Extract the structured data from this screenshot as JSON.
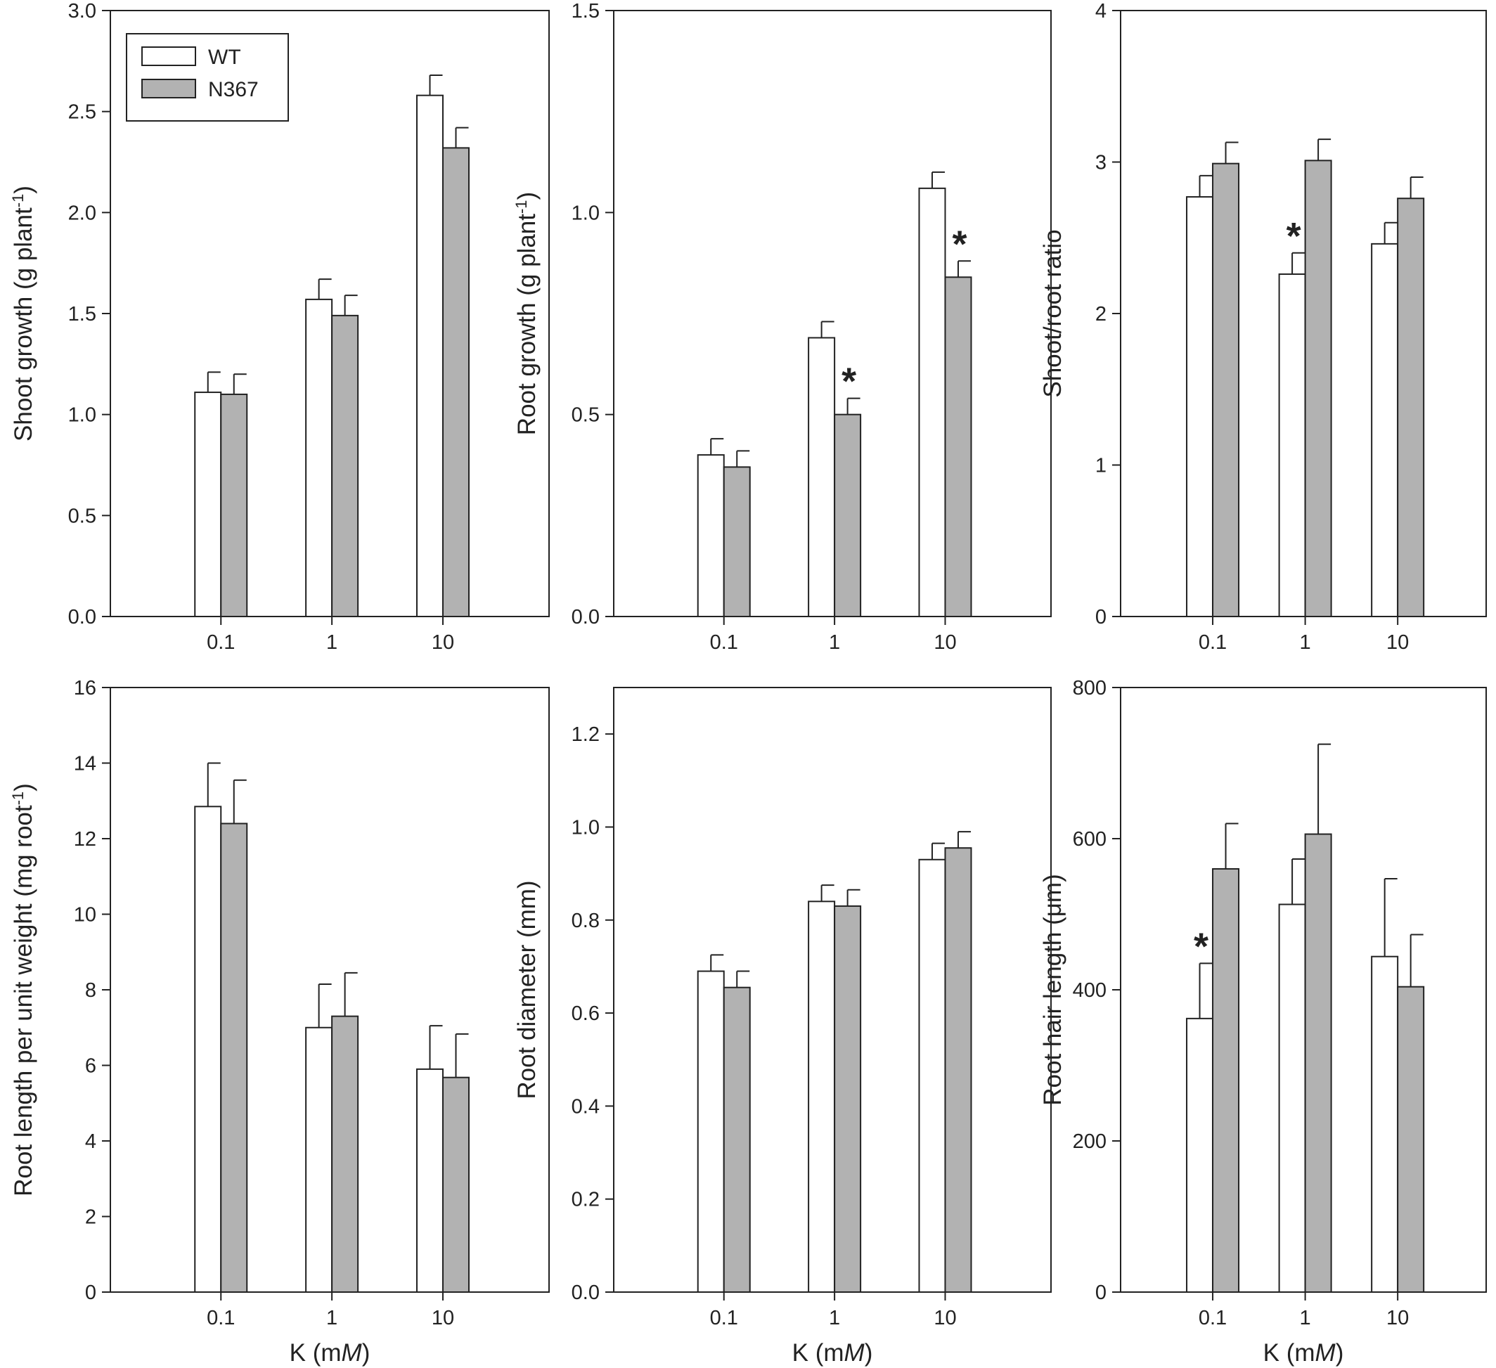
{
  "colors": {
    "wt": "#ffffff",
    "n367": "#b2b2b2",
    "axis": "#222222",
    "bar_edge": "#222222"
  },
  "legend": [
    {
      "label": "WT",
      "color": "#ffffff"
    },
    {
      "label": "N367",
      "color": "#b2b2b2"
    }
  ],
  "chart_data": [
    {
      "type": "bar",
      "categories": [
        "0.1",
        "1",
        "10"
      ],
      "ylabel": "Shoot growth (g plant-1)",
      "ylabel_main": "Shoot growth (g plant",
      "ylabel_sup": "-1",
      "ylabel_end": ")",
      "xlabel": "",
      "ylim": [
        0,
        3.0
      ],
      "yticks": [
        "0.0",
        "0.5",
        "1.0",
        "1.5",
        "2.0",
        "2.5",
        "3.0"
      ],
      "legend_position": "top-left",
      "series": [
        {
          "name": "WT",
          "values": [
            1.11,
            1.57,
            2.58
          ],
          "errors": [
            0.1,
            0.1,
            0.1
          ]
        },
        {
          "name": "N367",
          "values": [
            1.1,
            1.49,
            2.32
          ],
          "errors": [
            0.1,
            0.1,
            0.1
          ]
        }
      ],
      "annotations": []
    },
    {
      "type": "bar",
      "categories": [
        "0.1",
        "1",
        "10"
      ],
      "ylabel": "Root growth (g plant-1)",
      "ylabel_main": "Root growth (g plant",
      "ylabel_sup": "-1",
      "ylabel_end": ")",
      "xlabel": "",
      "ylim": [
        0,
        1.5
      ],
      "yticks": [
        "0.0",
        "0.5",
        "1.0",
        "1.5"
      ],
      "series": [
        {
          "name": "WT",
          "values": [
            0.4,
            0.69,
            1.06
          ],
          "errors": [
            0.04,
            0.04,
            0.04
          ]
        },
        {
          "name": "N367",
          "values": [
            0.37,
            0.5,
            0.84
          ],
          "errors": [
            0.04,
            0.04,
            0.04
          ]
        }
      ],
      "annotations": [
        {
          "text": "*",
          "category": 1,
          "series": 1
        },
        {
          "text": "*",
          "category": 2,
          "series": 1
        }
      ]
    },
    {
      "type": "bar",
      "categories": [
        "0.1",
        "1",
        "10"
      ],
      "ylabel": "Shoot/root ratio",
      "ylabel_main": "Shoot/root ratio",
      "ylabel_sup": "",
      "ylabel_end": "",
      "xlabel": "",
      "ylim": [
        0,
        4
      ],
      "yticks": [
        "0",
        "1",
        "2",
        "3",
        "4"
      ],
      "series": [
        {
          "name": "WT",
          "values": [
            2.77,
            2.26,
            2.46
          ],
          "errors": [
            0.14,
            0.14,
            0.14
          ]
        },
        {
          "name": "N367",
          "values": [
            2.99,
            3.01,
            2.76
          ],
          "errors": [
            0.14,
            0.14,
            0.14
          ]
        }
      ],
      "annotations": [
        {
          "text": "*",
          "category": 1,
          "series": 0
        }
      ]
    },
    {
      "type": "bar",
      "categories": [
        "0.1",
        "1",
        "10"
      ],
      "ylabel": "Root length per unit weight (mg root-1)",
      "ylabel_main": "Root length per unit weight (mg root",
      "ylabel_sup": "-1",
      "ylabel_end": ")",
      "xlabel": "K (mM)",
      "xlabel_main": "K (m",
      "xlabel_italic": "M",
      "xlabel_end": ")",
      "ylim": [
        0,
        16
      ],
      "yticks": [
        "0",
        "2",
        "4",
        "6",
        "8",
        "10",
        "12",
        "14",
        "16"
      ],
      "series": [
        {
          "name": "WT",
          "values": [
            12.85,
            7.0,
            5.9
          ],
          "errors": [
            1.15,
            1.15,
            1.15
          ]
        },
        {
          "name": "N367",
          "values": [
            12.4,
            7.3,
            5.68
          ],
          "errors": [
            1.15,
            1.15,
            1.15
          ]
        }
      ],
      "annotations": []
    },
    {
      "type": "bar",
      "categories": [
        "0.1",
        "1",
        "10"
      ],
      "ylabel": "Root diameter (mm)",
      "ylabel_main": "Root diameter (mm)",
      "ylabel_sup": "",
      "ylabel_end": "",
      "xlabel": "K (mM)",
      "xlabel_main": "K (m",
      "xlabel_italic": "M",
      "xlabel_end": ")",
      "ylim": [
        0,
        1.3
      ],
      "yticks": [
        "0.0",
        "0.2",
        "0.4",
        "0.6",
        "0.8",
        "1.0",
        "1.2"
      ],
      "series": [
        {
          "name": "WT",
          "values": [
            0.69,
            0.84,
            0.93
          ],
          "errors": [
            0.035,
            0.035,
            0.035
          ]
        },
        {
          "name": "N367",
          "values": [
            0.655,
            0.83,
            0.955
          ],
          "errors": [
            0.035,
            0.035,
            0.035
          ]
        }
      ],
      "annotations": []
    },
    {
      "type": "bar",
      "categories": [
        "0.1",
        "1",
        "10"
      ],
      "ylabel": "Root hair length (μm)",
      "ylabel_main": "Root hair length (μm)",
      "ylabel_sup": "",
      "ylabel_end": "",
      "xlabel": "K (mM)",
      "xlabel_main": "K (m",
      "xlabel_italic": "M",
      "xlabel_end": ")",
      "ylim": [
        0,
        800
      ],
      "yticks": [
        "0",
        "200",
        "400",
        "600",
        "800"
      ],
      "series": [
        {
          "name": "WT",
          "values": [
            362,
            513,
            444
          ],
          "errors": [
            73,
            60,
            103
          ]
        },
        {
          "name": "N367",
          "values": [
            560,
            606,
            404
          ],
          "errors": [
            60,
            119,
            69
          ]
        }
      ],
      "annotations": [
        {
          "text": "*",
          "category": 0,
          "series": 0
        }
      ]
    }
  ]
}
